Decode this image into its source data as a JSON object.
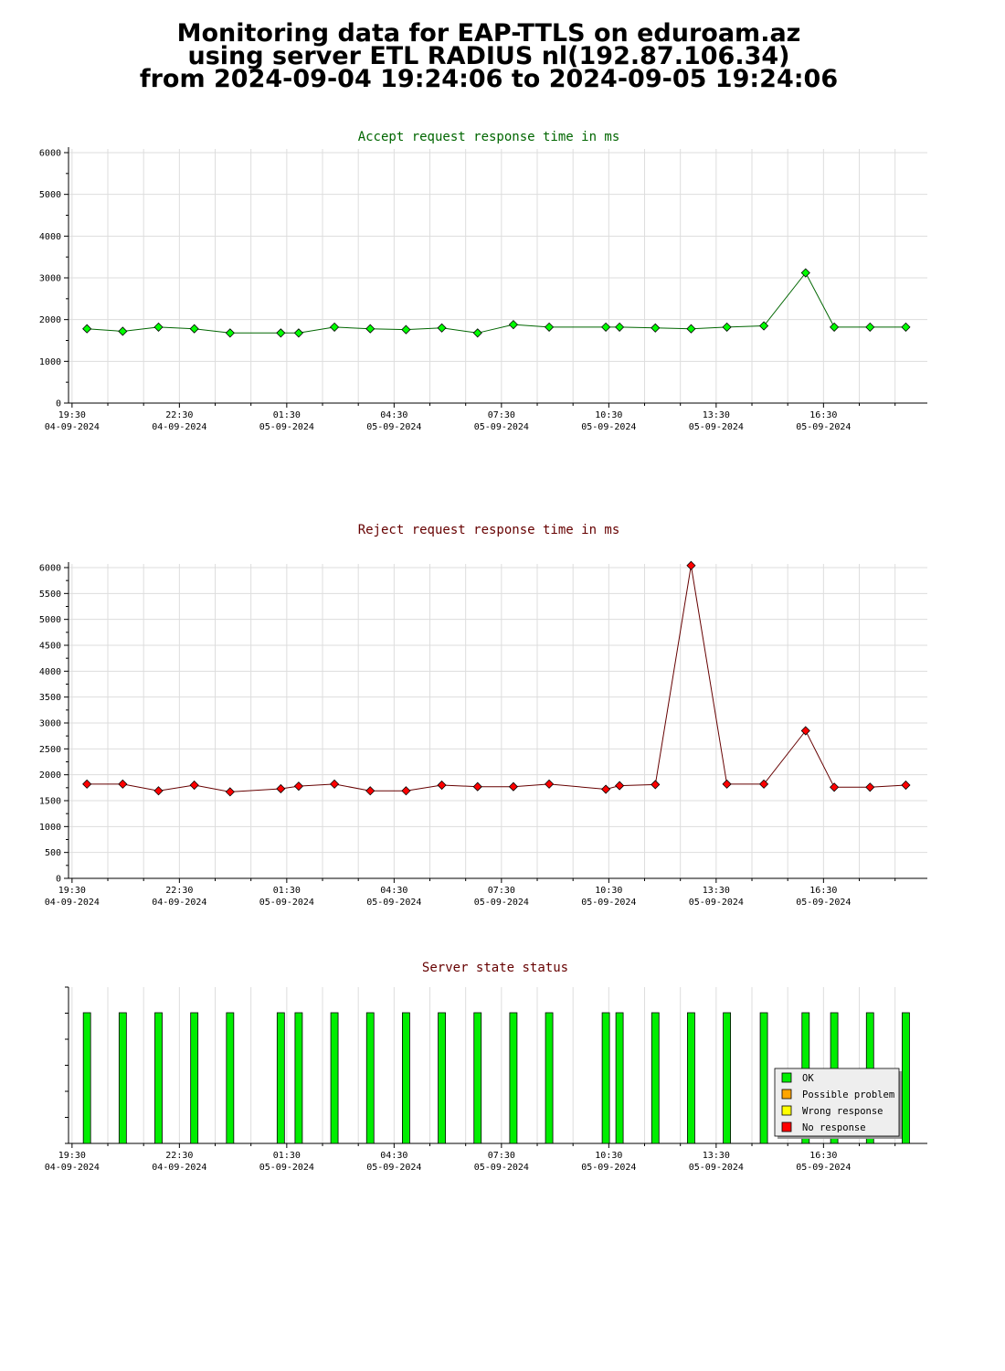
{
  "header": {
    "line1": "Monitoring data for EAP-TTLS on eduroam.az",
    "line2": "using server ETL RADIUS nl(192.87.106.34)",
    "line3": "from 2024-09-04 19:24:06 to 2024-09-05 19:24:06"
  },
  "x_ticks": [
    {
      "time": "19:30",
      "date": "04-09-2024"
    },
    {
      "time": "22:30",
      "date": "04-09-2024"
    },
    {
      "time": "01:30",
      "date": "05-09-2024"
    },
    {
      "time": "04:30",
      "date": "05-09-2024"
    },
    {
      "time": "07:30",
      "date": "05-09-2024"
    },
    {
      "time": "10:30",
      "date": "05-09-2024"
    },
    {
      "time": "13:30",
      "date": "05-09-2024"
    },
    {
      "time": "16:30",
      "date": "05-09-2024"
    }
  ],
  "colors": {
    "accept_line": "#006600",
    "accept_marker": "#00ff00",
    "reject_line": "#660000",
    "reject_marker": "#ff0000",
    "ok": "#00ee00",
    "possible_problem": "#ffa500",
    "wrong_response": "#ffff00",
    "no_response": "#ff0000",
    "accept_title": "#006600",
    "reject_title": "#660000",
    "status_title": "#660000"
  },
  "chart_data": [
    {
      "type": "line",
      "title": "Accept request response time in ms",
      "ylim": [
        0,
        6000
      ],
      "yticks": [
        0,
        1000,
        2000,
        3000,
        4000,
        5000,
        6000
      ],
      "x": [
        "2024-09-04 19:55",
        "2024-09-04 20:55",
        "2024-09-04 21:55",
        "2024-09-04 22:55",
        "2024-09-04 23:55",
        "2024-09-05 01:20",
        "2024-09-05 01:50",
        "2024-09-05 02:50",
        "2024-09-05 03:50",
        "2024-09-05 04:50",
        "2024-09-05 05:50",
        "2024-09-05 06:50",
        "2024-09-05 07:50",
        "2024-09-05 08:50",
        "2024-09-05 10:25",
        "2024-09-05 10:48",
        "2024-09-05 11:48",
        "2024-09-05 12:48",
        "2024-09-05 13:48",
        "2024-09-05 14:50",
        "2024-09-05 16:00",
        "2024-09-05 16:48",
        "2024-09-05 17:48",
        "2024-09-05 18:48"
      ],
      "values": [
        1780,
        1720,
        1820,
        1780,
        1680,
        1680,
        1680,
        1820,
        1780,
        1760,
        1800,
        1680,
        1880,
        1820,
        1820,
        1820,
        1800,
        1780,
        1820,
        1850,
        3120,
        1820,
        1820,
        1820
      ]
    },
    {
      "type": "line",
      "title": "Reject request response time in ms",
      "ylim": [
        0,
        6000
      ],
      "yticks": [
        0,
        500,
        1000,
        1500,
        2000,
        2500,
        3000,
        3500,
        4000,
        4500,
        5000,
        5500,
        6000
      ],
      "x": [
        "2024-09-04 19:55",
        "2024-09-04 20:55",
        "2024-09-04 21:55",
        "2024-09-04 22:55",
        "2024-09-04 23:55",
        "2024-09-05 01:20",
        "2024-09-05 01:50",
        "2024-09-05 02:50",
        "2024-09-05 03:50",
        "2024-09-05 04:50",
        "2024-09-05 05:50",
        "2024-09-05 06:50",
        "2024-09-05 07:50",
        "2024-09-05 08:50",
        "2024-09-05 10:25",
        "2024-09-05 10:48",
        "2024-09-05 11:48",
        "2024-09-05 12:48",
        "2024-09-05 13:48",
        "2024-09-05 14:50",
        "2024-09-05 16:00",
        "2024-09-05 16:48",
        "2024-09-05 17:48",
        "2024-09-05 18:48"
      ],
      "values": [
        1820,
        1820,
        1690,
        1800,
        1670,
        1730,
        1780,
        1820,
        1690,
        1690,
        1800,
        1770,
        1770,
        1820,
        1720,
        1790,
        1810,
        6040,
        1820,
        1820,
        2850,
        1760,
        1760,
        1800
      ]
    },
    {
      "type": "bar",
      "title": "Server state status",
      "x": [
        "2024-09-04 19:55",
        "2024-09-04 20:55",
        "2024-09-04 21:55",
        "2024-09-04 22:55",
        "2024-09-04 23:55",
        "2024-09-05 01:20",
        "2024-09-05 01:50",
        "2024-09-05 02:50",
        "2024-09-05 03:50",
        "2024-09-05 04:50",
        "2024-09-05 05:50",
        "2024-09-05 06:50",
        "2024-09-05 07:50",
        "2024-09-05 08:50",
        "2024-09-05 10:25",
        "2024-09-05 10:48",
        "2024-09-05 11:48",
        "2024-09-05 12:48",
        "2024-09-05 13:48",
        "2024-09-05 14:50",
        "2024-09-05 16:00",
        "2024-09-05 16:48",
        "2024-09-05 17:48",
        "2024-09-05 18:48"
      ],
      "status": [
        "OK",
        "OK",
        "OK",
        "OK",
        "OK",
        "OK",
        "OK",
        "OK",
        "OK",
        "OK",
        "OK",
        "OK",
        "OK",
        "OK",
        "OK",
        "OK",
        "OK",
        "OK",
        "OK",
        "OK",
        "OK",
        "OK",
        "OK",
        "OK"
      ],
      "legend": [
        "OK",
        "Possible problem",
        "Wrong response",
        "No response"
      ],
      "legend_position": "bottom-right"
    }
  ]
}
